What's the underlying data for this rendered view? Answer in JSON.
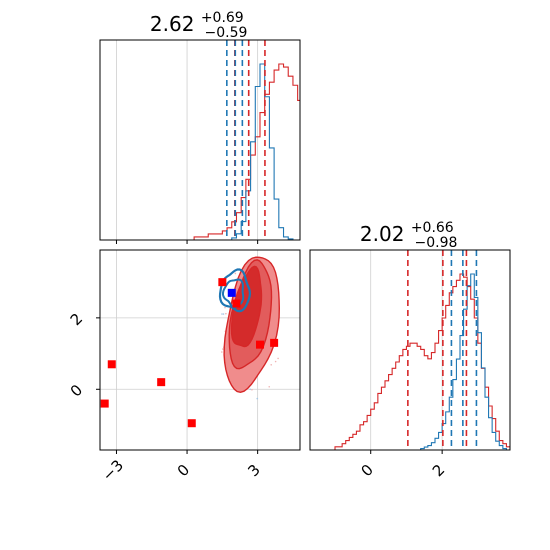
{
  "chart_data": {
    "type": "corner",
    "colors": {
      "red": "#d62728",
      "blue": "#1f77b4",
      "marker_red": "#ff0000",
      "marker_blue": "#0000ff"
    },
    "grid": true,
    "x_param": {
      "title_value": "2.62",
      "title_plus": "+0.69",
      "title_minus": "−0.59",
      "range": [
        -3.7,
        4.8
      ],
      "ticks": [
        -3,
        0,
        3
      ],
      "tick_labels": [
        "−3",
        "0",
        "3"
      ],
      "quantiles_red": [
        2.03,
        2.62,
        3.31
      ],
      "quantiles_blue": [
        1.69,
        2.05,
        2.35
      ]
    },
    "y_param": {
      "title_value": "2.02",
      "title_plus": "+0.66",
      "title_minus": "−0.98",
      "range": [
        -1.7,
        3.9
      ],
      "ticks": [
        0,
        2
      ],
      "tick_labels": [
        "0",
        "2"
      ],
      "quantiles_red": [
        1.04,
        2.02,
        2.68
      ],
      "quantiles_blue": [
        2.26,
        2.58,
        2.96
      ]
    },
    "scatter_markers": {
      "red": [
        {
          "x": -3.5,
          "y": -0.4
        },
        {
          "x": -3.2,
          "y": 0.7
        },
        {
          "x": -1.1,
          "y": 0.2
        },
        {
          "x": 0.2,
          "y": -0.95
        },
        {
          "x": 1.5,
          "y": 3.0
        },
        {
          "x": 2.1,
          "y": 2.4
        },
        {
          "x": 3.1,
          "y": 1.25
        },
        {
          "x": 3.7,
          "y": 1.3
        }
      ],
      "blue": [
        {
          "x": 1.9,
          "y": 2.7
        }
      ]
    },
    "histogram_x_red": {
      "bin_start": -3.7,
      "bin_width": 0.2,
      "counts": [
        0,
        0,
        0,
        0,
        0,
        0,
        0,
        0,
        0,
        0,
        0,
        0,
        0,
        0,
        0,
        0,
        0,
        0,
        0,
        0,
        1,
        1,
        1,
        2,
        2,
        2,
        3,
        4,
        6,
        9,
        14,
        20,
        28,
        34,
        42,
        48,
        52,
        56,
        58,
        57,
        54,
        51,
        46,
        40,
        34,
        28,
        22,
        16,
        12,
        8,
        6,
        4,
        3,
        2,
        1,
        1,
        0,
        0,
        0,
        0,
        0,
        0,
        0,
        0,
        0,
        0,
        0,
        0,
        0,
        0,
        0,
        0,
        0,
        0,
        0,
        0,
        0,
        0,
        0,
        0,
        0,
        0,
        0,
        0,
        0,
        0
      ]
    },
    "histogram_x_blue": {
      "bin_start": -3.7,
      "bin_width": 0.2,
      "counts": [
        0,
        0,
        0,
        0,
        0,
        0,
        0,
        0,
        0,
        0,
        0,
        0,
        0,
        0,
        0,
        0,
        0,
        0,
        0,
        0,
        0,
        0,
        0,
        0,
        0,
        0,
        0,
        0,
        2,
        6,
        18,
        48,
        96,
        150,
        172,
        140,
        90,
        40,
        12,
        3,
        1,
        0,
        0,
        0,
        0,
        0,
        0,
        0,
        0,
        0,
        0,
        0,
        0,
        0,
        0,
        0,
        0,
        0,
        0,
        0,
        0,
        0,
        0,
        0,
        0,
        0,
        0,
        0,
        0,
        0,
        0,
        0,
        0,
        0,
        0,
        0,
        0,
        0,
        0,
        0,
        0,
        0,
        0,
        0,
        0,
        0
      ]
    },
    "histogram_y_red": {
      "bin_start": -1.7,
      "bin_width": 0.1,
      "counts": [
        0,
        0,
        0,
        0,
        0,
        0,
        0,
        1,
        1,
        2,
        3,
        4,
        5,
        6,
        8,
        9,
        11,
        13,
        15,
        18,
        20,
        22,
        24,
        26,
        28,
        30,
        32,
        33,
        34,
        34,
        33,
        32,
        30,
        29,
        31,
        34,
        38,
        42,
        46,
        50,
        52,
        54,
        56,
        55,
        52,
        48,
        42,
        34,
        26,
        20,
        14,
        10,
        6,
        3,
        2,
        1,
        0
      ]
    },
    "histogram_y_blue": {
      "bin_start": -1.7,
      "bin_width": 0.1,
      "counts": [
        0,
        0,
        0,
        0,
        0,
        0,
        0,
        0,
        0,
        0,
        0,
        0,
        0,
        0,
        0,
        0,
        0,
        0,
        0,
        0,
        0,
        0,
        0,
        0,
        0,
        0,
        0,
        0,
        0,
        0,
        0,
        1,
        2,
        3,
        5,
        8,
        12,
        18,
        26,
        36,
        48,
        62,
        78,
        96,
        112,
        120,
        104,
        80,
        56,
        36,
        22,
        12,
        6,
        3,
        1,
        0
      ]
    }
  }
}
